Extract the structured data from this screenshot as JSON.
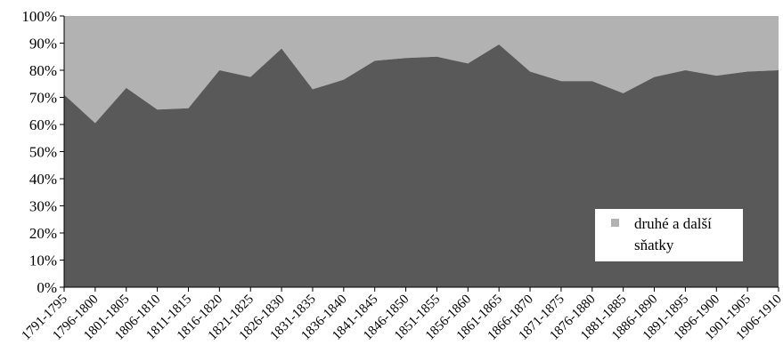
{
  "chart_data": {
    "type": "area",
    "stacked": true,
    "percent": true,
    "categories": [
      "1791-1795",
      "1796-1800",
      "1801-1805",
      "1806-1810",
      "1811-1815",
      "1816-1820",
      "1821-1825",
      "1826-1830",
      "1831-1835",
      "1836-1840",
      "1841-1845",
      "1846-1850",
      "1851-1855",
      "1856-1860",
      "1861-1865",
      "1866-1870",
      "1871-1875",
      "1876-1880",
      "1881-1885",
      "1886-1890",
      "1891-1895",
      "1896-1900",
      "1901-1905",
      "1906-1910"
    ],
    "series": [
      {
        "values": [
          71,
          60.5,
          73.5,
          65.5,
          66,
          80,
          77.5,
          88,
          73,
          76.5,
          83.5,
          84.5,
          85,
          82.5,
          89.5,
          79.5,
          76,
          76,
          71.5,
          77.5,
          80,
          78,
          79.5,
          80
        ],
        "color": "#595959"
      },
      {
        "name": "druhé a další sňatky",
        "values": [
          29,
          39.5,
          26.5,
          34.5,
          34,
          20,
          22.5,
          12,
          27,
          23.5,
          16.5,
          15.5,
          15,
          17.5,
          10.5,
          20.5,
          24,
          24,
          28.5,
          22.5,
          20,
          22,
          20.5,
          20
        ],
        "color": "#b2b2b2"
      }
    ],
    "y_ticks": [
      "0%",
      "10%",
      "20%",
      "30%",
      "40%",
      "50%",
      "60%",
      "70%",
      "80%",
      "90%",
      "100%"
    ],
    "ylim": [
      0,
      100
    ],
    "grid": false,
    "legend": {
      "position": "lower-right",
      "entries": [
        {
          "label_line1": "druhé a další",
          "label_line2": "sňatky",
          "color": "#b2b2b2"
        }
      ]
    }
  }
}
